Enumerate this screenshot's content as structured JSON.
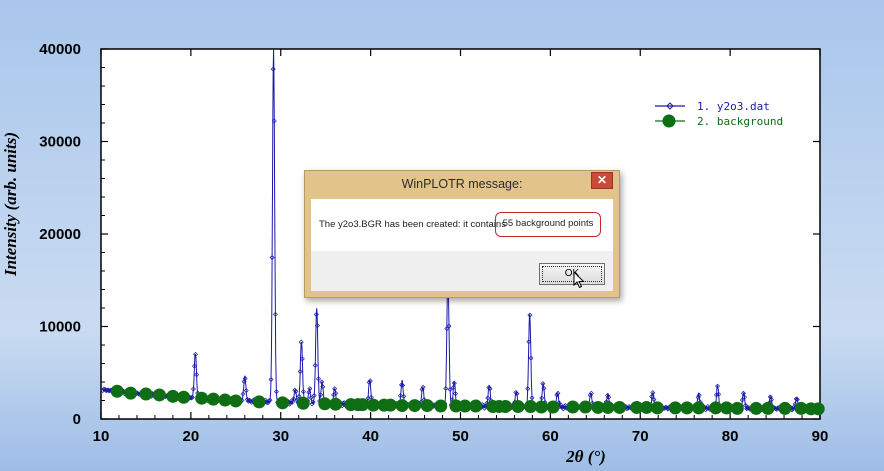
{
  "dialog": {
    "title": "WinPLOTR message:",
    "close_glyph": "✕",
    "message": "The y2o3.BGR has been created: it contains",
    "highlight": "55 background points",
    "ok_label": "OK"
  },
  "chart_data": {
    "type": "line",
    "xlabel": "2θ (°)",
    "ylabel": "Intensity (arb. units)",
    "xlim": [
      10,
      90
    ],
    "ylim": [
      0,
      40000
    ],
    "xticks": [
      "10",
      "20",
      "30",
      "40",
      "50",
      "60",
      "70",
      "80",
      "90"
    ],
    "yticks": [
      "0",
      "10000",
      "20000",
      "30000",
      "40000"
    ],
    "legend_position": "top-right",
    "series": [
      {
        "name": "1. y2o3.dat",
        "color": "#1a1aa8",
        "marker": "diamond",
        "baseline": 1500,
        "peaks": [
          [
            20.5,
            6400
          ],
          [
            26.0,
            4100
          ],
          [
            29.2,
            39500
          ],
          [
            31.6,
            2900
          ],
          [
            32.3,
            8200
          ],
          [
            33.2,
            3000
          ],
          [
            34.0,
            11800
          ],
          [
            34.6,
            3800
          ],
          [
            36.0,
            3200
          ],
          [
            39.9,
            4200
          ],
          [
            43.5,
            4100
          ],
          [
            45.8,
            3500
          ],
          [
            48.6,
            15500
          ],
          [
            49.3,
            4200
          ],
          [
            53.2,
            3800
          ],
          [
            56.2,
            3100
          ],
          [
            57.7,
            11600
          ],
          [
            59.2,
            4000
          ],
          [
            60.8,
            3000
          ],
          [
            64.5,
            3000
          ],
          [
            66.4,
            2900
          ],
          [
            71.4,
            3200
          ],
          [
            76.5,
            3000
          ],
          [
            78.6,
            3900
          ],
          [
            81.5,
            3200
          ],
          [
            84.5,
            2800
          ],
          [
            87.4,
            2700
          ]
        ]
      },
      {
        "name": "2. background",
        "color": "#0f6e14",
        "marker": "circle",
        "x": [
          11.8,
          13.3,
          15.0,
          16.5,
          18.0,
          19.2,
          21.2,
          22.5,
          23.8,
          25.0,
          27.6,
          30.2,
          32.5,
          34.9,
          36.1,
          37.8,
          39.1,
          40.3,
          41.5,
          43.5,
          44.9,
          46.3,
          47.8,
          49.5,
          50.5,
          51.7,
          53.6,
          55.0,
          56.4,
          57.8,
          59.0,
          60.3,
          62.5,
          63.9,
          65.3,
          66.4,
          67.7,
          69.6,
          70.7,
          71.9,
          73.9,
          75.2,
          76.5,
          78.4,
          79.6,
          80.8,
          82.9,
          84.2,
          86.1,
          87.9,
          89.0,
          89.8,
          38.6,
          42.2,
          54.3
        ],
        "y": [
          3000,
          2800,
          2700,
          2600,
          2450,
          2350,
          2250,
          2150,
          2050,
          1950,
          1850,
          1750,
          1700,
          1650,
          1600,
          1550,
          1550,
          1500,
          1500,
          1450,
          1450,
          1450,
          1400,
          1400,
          1400,
          1400,
          1350,
          1350,
          1350,
          1350,
          1300,
          1300,
          1300,
          1300,
          1250,
          1250,
          1250,
          1250,
          1250,
          1200,
          1200,
          1200,
          1200,
          1200,
          1200,
          1150,
          1150,
          1150,
          1150,
          1150,
          1100,
          1100,
          1550,
          1500,
          1350
        ]
      }
    ]
  }
}
